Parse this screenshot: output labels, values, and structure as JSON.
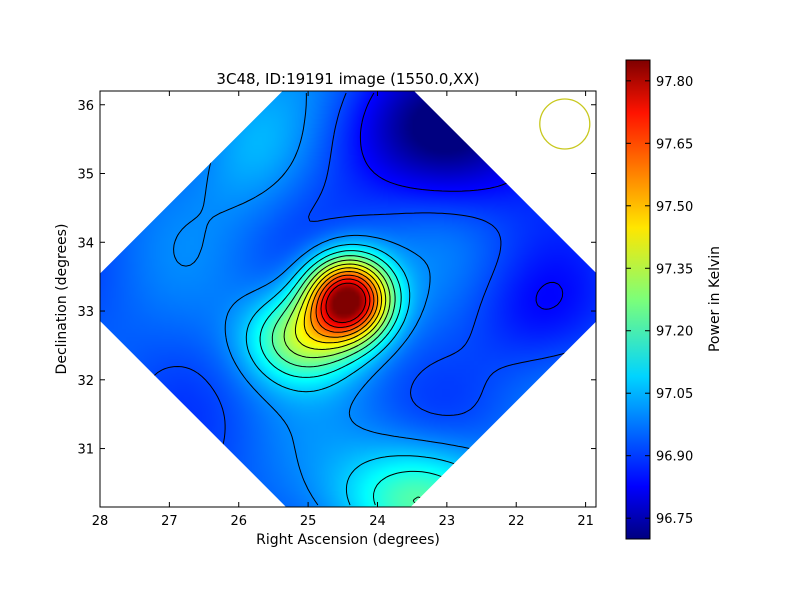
{
  "chart_data": {
    "type": "heatmap",
    "title": "3C48, ID:19191 image (1550.0,XX)",
    "xlabel": "Right Ascension (degrees)",
    "ylabel": "Declination (degrees)",
    "xlim": [
      28.0,
      20.85
    ],
    "ylim": [
      30.15,
      36.2
    ],
    "x_ticks": [
      "28",
      "27",
      "26",
      "25",
      "24",
      "23",
      "22",
      "21"
    ],
    "y_ticks": [
      "31",
      "32",
      "33",
      "34",
      "35",
      "36"
    ],
    "x_tick_values": [
      28,
      27,
      26,
      25,
      24,
      23,
      22,
      21
    ],
    "y_tick_values": [
      31,
      32,
      33,
      34,
      35,
      36
    ],
    "colorbar": {
      "label": "Power in Kelvin",
      "range": [
        96.7,
        97.85
      ],
      "ticks": [
        "96.75",
        "96.90",
        "97.05",
        "97.20",
        "97.35",
        "97.50",
        "97.65",
        "97.80"
      ],
      "tick_values": [
        96.75,
        96.9,
        97.05,
        97.2,
        97.35,
        97.5,
        97.65,
        97.8
      ]
    },
    "field": {
      "base": 96.95,
      "peak": {
        "ra": 24.42,
        "dec": 33.18,
        "amplitude": 0.92
      },
      "ridge": {
        "ra": 25.1,
        "dec": 32.6,
        "amplitude": 0.35
      },
      "south_bump": {
        "ra": 23.4,
        "dec": 30.3,
        "amplitude": 0.28
      },
      "north_depression": {
        "ra": 23.0,
        "dec": 35.6,
        "amplitude": -0.25
      },
      "east_depression": {
        "ra": 21.7,
        "dec": 33.0,
        "amplitude": -0.08
      },
      "west_bright": {
        "ra": 25.8,
        "dec": 35.4,
        "amplitude": 0.1
      }
    },
    "grid": false,
    "legend": "none",
    "beam_marker": {
      "ra": 21.3,
      "dec": 35.72,
      "color": "#c8c81e"
    }
  }
}
